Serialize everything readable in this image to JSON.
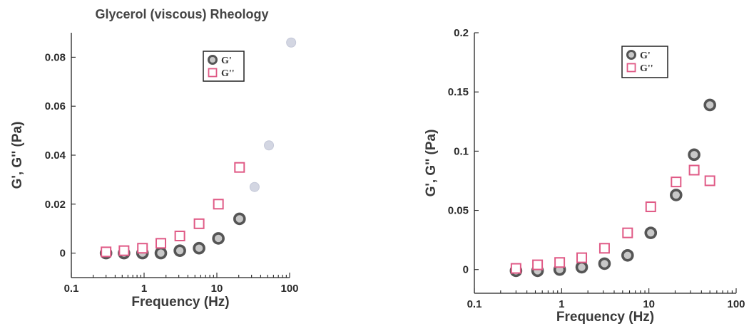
{
  "chart_data": [
    {
      "type": "scatter",
      "title": "Glycerol (viscous) Rheology",
      "xlabel": "Frequency (Hz)",
      "ylabel": "G', G'' (Pa)",
      "xscale": "log",
      "xlim": [
        0.1,
        100
      ],
      "ylim": [
        -0.01,
        0.09
      ],
      "xticks": [
        0.1,
        1,
        10,
        100
      ],
      "xtick_labels": [
        "0.1",
        "1",
        "10",
        "100"
      ],
      "yticks": [
        0,
        0.02,
        0.04,
        0.06,
        0.08
      ],
      "ytick_labels": [
        "0",
        "0.02",
        "0.04",
        "0.06",
        "0.08"
      ],
      "legend_position": "top-right",
      "series": [
        {
          "name": "G'",
          "marker": "circle",
          "color": "#555555",
          "x": [
            0.3,
            0.53,
            0.95,
            1.7,
            3.1,
            5.7,
            10.5,
            20.5
          ],
          "y": [
            0.0,
            0.0,
            0.0,
            0.0,
            0.001,
            0.002,
            0.006,
            0.014
          ]
        },
        {
          "name": "G''",
          "marker": "square",
          "color": "#e05a86",
          "x": [
            0.3,
            0.53,
            0.95,
            1.7,
            3.1,
            5.7,
            10.5,
            20.5
          ],
          "y": [
            0.0005,
            0.001,
            0.002,
            0.004,
            0.007,
            0.012,
            0.02,
            0.035
          ]
        },
        {
          "name": "",
          "marker": "faint-circle",
          "color": "#c4c8d8",
          "x": [
            33,
            52,
            105
          ],
          "y": [
            0.027,
            0.044,
            0.086
          ]
        }
      ]
    },
    {
      "type": "scatter",
      "title": "",
      "xlabel": "Frequency (Hz)",
      "ylabel": "G', G'' (Pa)",
      "xscale": "log",
      "xlim": [
        0.1,
        100
      ],
      "ylim": [
        -0.02,
        0.2
      ],
      "xticks": [
        0.1,
        1,
        10,
        100
      ],
      "xtick_labels": [
        "0.1",
        "1",
        "10",
        "100"
      ],
      "yticks": [
        0,
        0.05,
        0.1,
        0.15,
        0.2
      ],
      "ytick_labels": [
        "0",
        "0.05",
        "0.1",
        "0.15",
        "0.2"
      ],
      "legend_position": "top-right",
      "series": [
        {
          "name": "G'",
          "marker": "circle",
          "color": "#555555",
          "x": [
            0.3,
            0.53,
            0.95,
            1.7,
            3.1,
            5.7,
            10.5,
            20.5,
            33,
            50
          ],
          "y": [
            -0.001,
            -0.001,
            0.0,
            0.002,
            0.005,
            0.012,
            0.031,
            0.063,
            0.097,
            0.139
          ]
        },
        {
          "name": "G''",
          "marker": "square",
          "color": "#e05a86",
          "x": [
            0.3,
            0.53,
            0.95,
            1.7,
            3.1,
            5.7,
            10.5,
            20.5,
            33,
            50
          ],
          "y": [
            0.001,
            0.004,
            0.006,
            0.01,
            0.018,
            0.031,
            0.053,
            0.074,
            0.084,
            0.075
          ]
        }
      ]
    }
  ]
}
